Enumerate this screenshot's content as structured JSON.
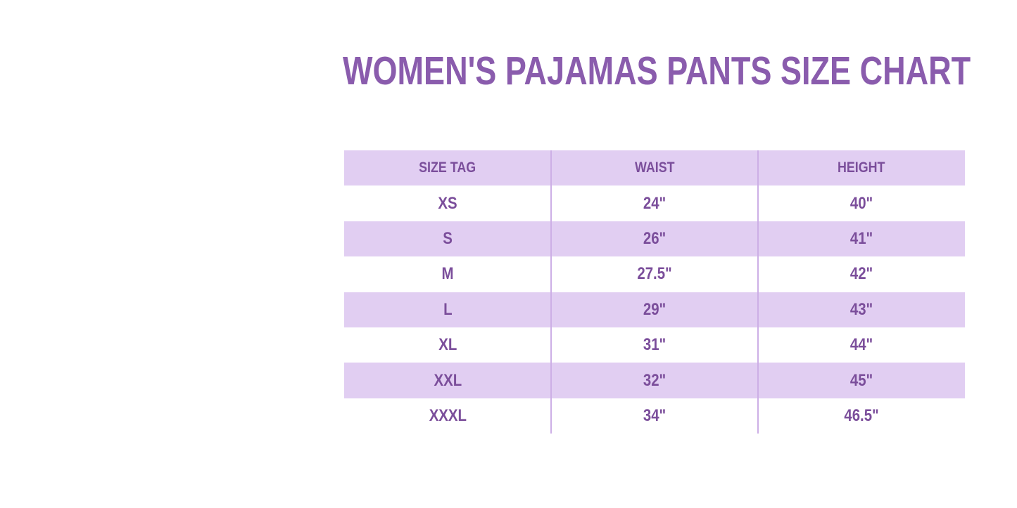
{
  "title": "WOMEN'S PAJAMAS PANTS SIZE CHART",
  "colors": {
    "title_text": "#8a5cad",
    "table_text": "#7b4e9b",
    "row_band": "#e1cef2",
    "divider": "#cdafe6",
    "background": "#ffffff"
  },
  "chart_data": {
    "type": "table",
    "title": "WOMEN'S PAJAMAS PANTS SIZE CHART",
    "columns": [
      "SIZE TAG",
      "WAIST",
      "HEIGHT"
    ],
    "rows": [
      [
        "XS",
        "24\"",
        "40\""
      ],
      [
        "S",
        "26\"",
        "41\""
      ],
      [
        "M",
        "27.5\"",
        "42\""
      ],
      [
        "L",
        "29\"",
        "43\""
      ],
      [
        "XL",
        "31\"",
        "44\""
      ],
      [
        "XXL",
        "32\"",
        "45\""
      ],
      [
        "XXXL",
        "34\"",
        "46.5\""
      ]
    ],
    "layout": {
      "striped": true,
      "stripe_pattern": "header and odd data rows lavender, even data rows white",
      "column_dividers": true,
      "outer_border": false
    }
  }
}
